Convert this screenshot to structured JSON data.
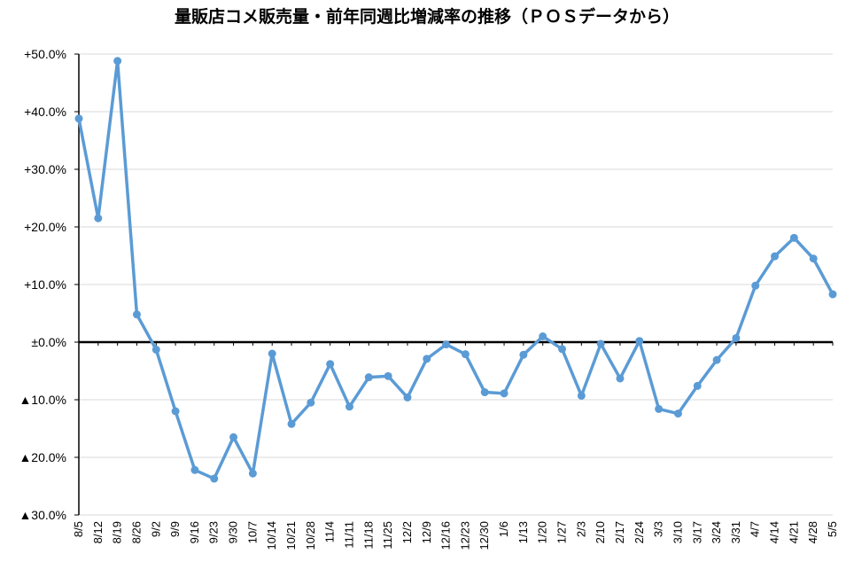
{
  "chart_data": {
    "type": "line",
    "title": "量販店コメ販売量・前年同週比増減率の推移（ＰＯＳデータから）",
    "xlabel": "",
    "ylabel": "",
    "ylim": [
      -30,
      50
    ],
    "grid": true,
    "legend": "none",
    "line_color": "#5B9BD5",
    "y_tick_values": [
      50,
      40,
      30,
      20,
      10,
      0,
      -10,
      -20,
      -30
    ],
    "y_tick_labels": [
      "+50.0%",
      "+40.0%",
      "+30.0%",
      "+20.0%",
      "+10.0%",
      "±0.0%",
      "▲10.0%",
      "▲20.0%",
      "▲30.0%"
    ],
    "categories": [
      "8/5",
      "8/12",
      "8/19",
      "8/26",
      "9/2",
      "9/9",
      "9/16",
      "9/23",
      "9/30",
      "10/7",
      "10/14",
      "10/21",
      "10/28",
      "11/4",
      "11/11",
      "11/18",
      "11/25",
      "12/2",
      "12/9",
      "12/16",
      "12/23",
      "12/30",
      "1/6",
      "1/13",
      "1/20",
      "1/27",
      "2/3",
      "2/10",
      "2/17",
      "2/24",
      "3/3",
      "3/10",
      "3/17",
      "3/24",
      "3/31",
      "4/7",
      "4/14",
      "4/21",
      "4/28",
      "5/5"
    ],
    "series": [
      {
        "values": [
          38.8,
          21.5,
          48.8,
          4.8,
          -1.3,
          -12.0,
          -22.2,
          -23.7,
          -16.5,
          -22.8,
          -2.0,
          -14.2,
          -10.5,
          -3.8,
          -11.2,
          -6.1,
          -5.9,
          -9.6,
          -2.9,
          -0.4,
          -2.1,
          -8.7,
          -8.9,
          -2.2,
          1.0,
          -1.2,
          -9.3,
          -0.3,
          -6.3,
          0.2,
          -11.6,
          -12.4,
          -7.6,
          -3.1,
          0.7,
          9.8,
          14.9,
          18.1,
          14.5,
          8.3
        ]
      }
    ]
  }
}
